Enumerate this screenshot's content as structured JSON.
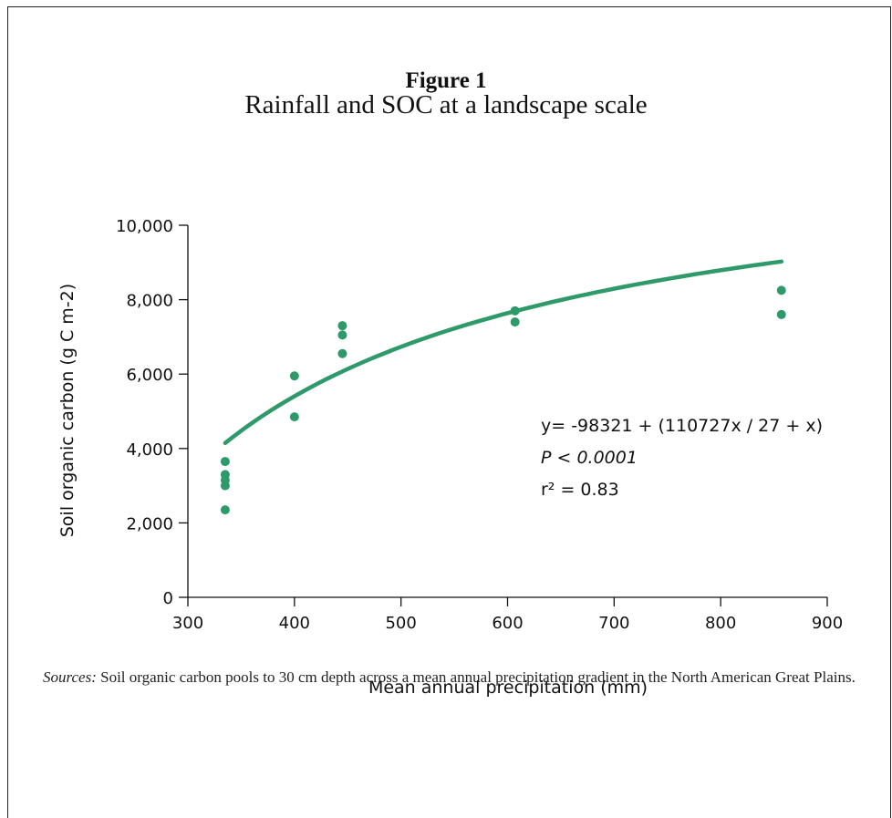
{
  "figure": {
    "label": "Figure 1",
    "title": "Rainfall and SOC at a landscape scale",
    "sources_label": "Sources:",
    "sources_text": "Soil organic carbon pools to 30 cm depth across a mean annual precipitation gradient in the North American Great Plains."
  },
  "chart_data": {
    "type": "scatter",
    "title": "Rainfall and SOC at a landscape scale",
    "xlabel": "Mean annual precipitation (mm)",
    "ylabel": "Soil organic carbon (g C m-2)",
    "xlim": [
      300,
      900
    ],
    "ylim": [
      0,
      10000
    ],
    "x_ticks": [
      "300",
      "400",
      "500",
      "600",
      "700",
      "800",
      "900"
    ],
    "y_ticks": [
      "0",
      "2,000",
      "4,000",
      "6,000",
      "8,000",
      "10,000"
    ],
    "grid": false,
    "colors": {
      "points": "#2e9a6a",
      "fit": "#2e9a6a"
    },
    "series": [
      {
        "points": [
          {
            "x": 335,
            "y": 3650
          },
          {
            "x": 335,
            "y": 3300
          },
          {
            "x": 335,
            "y": 3150
          },
          {
            "x": 335,
            "y": 3000
          },
          {
            "x": 335,
            "y": 2350
          },
          {
            "x": 400,
            "y": 5950
          },
          {
            "x": 400,
            "y": 4850
          },
          {
            "x": 445,
            "y": 7300
          },
          {
            "x": 445,
            "y": 7050
          },
          {
            "x": 445,
            "y": 6550
          },
          {
            "x": 607,
            "y": 7700
          },
          {
            "x": 607,
            "y": 7400
          },
          {
            "x": 857,
            "y": 8250
          },
          {
            "x": 857,
            "y": 7600
          }
        ]
      }
    ],
    "fit": {
      "x_range": [
        335,
        857
      ],
      "annotation_lines": [
        "y= -98321 + (110727x / 27 + x)",
        "P < 0.0001",
        "r² = 0.83"
      ]
    }
  }
}
